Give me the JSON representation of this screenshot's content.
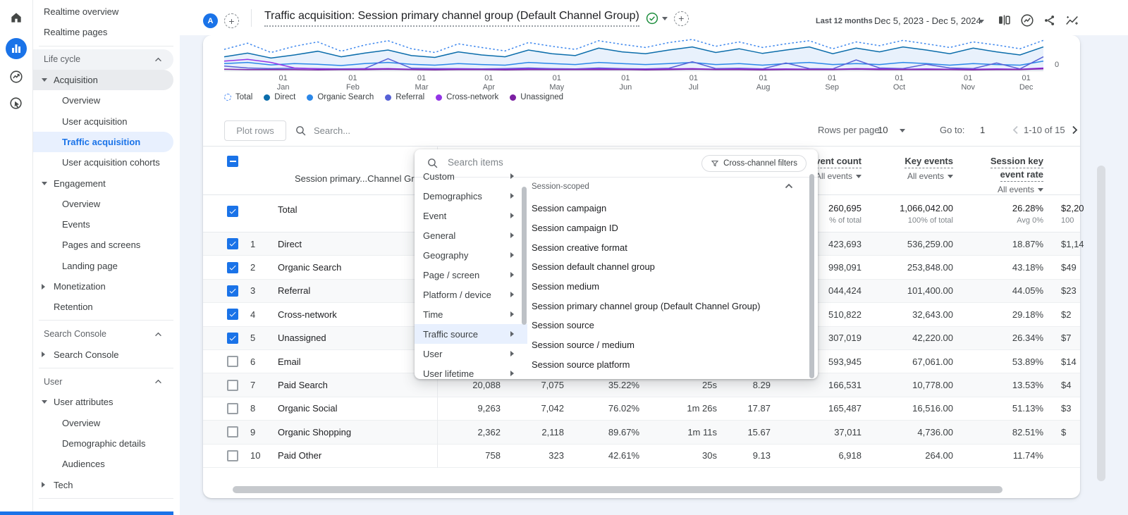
{
  "colors": {
    "accent": "#1a73e8",
    "selected_bg": "#e8f0fe",
    "badge_green": "#1e8e3e"
  },
  "rail": {
    "items": [
      {
        "icon": "home-icon",
        "active": false
      },
      {
        "icon": "reports-icon",
        "active": true
      },
      {
        "icon": "explore-icon",
        "active": false
      },
      {
        "icon": "advertising-icon",
        "active": false
      }
    ]
  },
  "sidebar": {
    "items": [
      {
        "type": "link",
        "label": "Realtime overview",
        "indent": 0
      },
      {
        "type": "link",
        "label": "Realtime pages",
        "indent": 0
      },
      {
        "type": "divider"
      },
      {
        "type": "header",
        "label": "Life cycle",
        "shade": "light"
      },
      {
        "type": "expand",
        "label": "Acquisition",
        "state": "expanded",
        "shade": "gray"
      },
      {
        "type": "link",
        "label": "Overview",
        "indent": 2
      },
      {
        "type": "link",
        "label": "User acquisition",
        "indent": 2
      },
      {
        "type": "link",
        "label": "Traffic acquisition",
        "indent": 2,
        "selected": true
      },
      {
        "type": "link",
        "label": "User acquisition cohorts",
        "indent": 2
      },
      {
        "type": "expand",
        "label": "Engagement",
        "state": "expanded"
      },
      {
        "type": "link",
        "label": "Overview",
        "indent": 2
      },
      {
        "type": "link",
        "label": "Events",
        "indent": 2
      },
      {
        "type": "link",
        "label": "Pages and screens",
        "indent": 2
      },
      {
        "type": "link",
        "label": "Landing page",
        "indent": 2
      },
      {
        "type": "expand",
        "label": "Monetization",
        "state": "collapsed"
      },
      {
        "type": "link",
        "label": "Retention",
        "indent": 1
      },
      {
        "type": "divider"
      },
      {
        "type": "header",
        "label": "Search Console"
      },
      {
        "type": "expand",
        "label": "Search Console",
        "state": "collapsed"
      },
      {
        "type": "divider"
      },
      {
        "type": "header",
        "label": "User"
      },
      {
        "type": "expand",
        "label": "User attributes",
        "state": "expanded"
      },
      {
        "type": "link",
        "label": "Overview",
        "indent": 2
      },
      {
        "type": "link",
        "label": "Demographic details",
        "indent": 2
      },
      {
        "type": "link",
        "label": "Audiences",
        "indent": 2
      },
      {
        "type": "expand",
        "label": "Tech",
        "state": "collapsed"
      },
      {
        "type": "divider"
      }
    ]
  },
  "topbar": {
    "avatar_letter": "A",
    "plus": "+",
    "title": "Traffic acquisition: Session primary channel group (Default Channel Group)",
    "date_label": "Last 12 months",
    "date_range": "Dec 5, 2023 - Dec 5, 2024"
  },
  "chart_data": {
    "type": "line",
    "title": "",
    "xlabel": "",
    "ylabel": "",
    "y_right_label": "0",
    "grid": false,
    "legend_position": "bottom-left",
    "x_ticks": [
      {
        "day": "01",
        "month": "Jan",
        "pct": 7.2
      },
      {
        "day": "01",
        "month": "Feb",
        "pct": 15.7
      },
      {
        "day": "01",
        "month": "Mar",
        "pct": 24.1
      },
      {
        "day": "01",
        "month": "Apr",
        "pct": 32.3
      },
      {
        "day": "01",
        "month": "May",
        "pct": 40.6
      },
      {
        "day": "01",
        "month": "Jun",
        "pct": 49.0
      },
      {
        "day": "01",
        "month": "Jul",
        "pct": 57.3
      },
      {
        "day": "01",
        "month": "Aug",
        "pct": 65.8
      },
      {
        "day": "01",
        "month": "Sep",
        "pct": 74.2
      },
      {
        "day": "01",
        "month": "Oct",
        "pct": 82.4
      },
      {
        "day": "01",
        "month": "Nov",
        "pct": 90.8
      },
      {
        "day": "01",
        "month": "Dec",
        "pct": 97.9
      }
    ],
    "y_range_note": "values estimated, axis unlabeled except 0",
    "series": [
      {
        "name": "Total",
        "color": "#3d87ee",
        "dashed": true,
        "fill": false,
        "values": [
          68,
          88,
          58,
          78,
          92,
          62,
          82,
          96,
          70,
          58,
          86,
          74,
          63,
          90,
          78,
          68,
          96,
          84,
          74,
          90,
          100,
          78,
          92,
          74,
          86,
          96,
          70,
          92,
          80,
          97,
          86,
          74,
          92,
          82,
          70,
          97
        ]
      },
      {
        "name": "Direct",
        "color": "#0b6dab",
        "dashed": false,
        "fill": true,
        "values": [
          44,
          56,
          40,
          50,
          62,
          44,
          56,
          66,
          48,
          42,
          60,
          50,
          44,
          66,
          54,
          48,
          72,
          60,
          54,
          66,
          76,
          58,
          70,
          55,
          66,
          76,
          54,
          72,
          60,
          76,
          66,
          54,
          72,
          60,
          50,
          76
        ]
      },
      {
        "name": "Organic Search",
        "color": "#2b87e8",
        "dashed": false,
        "fill": false,
        "values": [
          22,
          26,
          18,
          22,
          20,
          16,
          22,
          26,
          20,
          17,
          22,
          19,
          17,
          26,
          22,
          19,
          26,
          22,
          19,
          22,
          26,
          19,
          22,
          17,
          22,
          26,
          19,
          22,
          19,
          26,
          22,
          17,
          22,
          19,
          17,
          30
        ]
      },
      {
        "name": "Referral",
        "color": "#5661d6",
        "dashed": false,
        "fill": false,
        "values": [
          14,
          8,
          6,
          7,
          6,
          5,
          6,
          38,
          7,
          6,
          6,
          5,
          6,
          8,
          6,
          5,
          8,
          6,
          5,
          7,
          28,
          6,
          7,
          5,
          24,
          6,
          5,
          34,
          8,
          6,
          20,
          8,
          6,
          24,
          5,
          44
        ]
      },
      {
        "name": "Cross-network",
        "color": "#9334e6",
        "dashed": false,
        "fill": false,
        "values": [
          30,
          36,
          26,
          8,
          5,
          4,
          5,
          6,
          4,
          4,
          5,
          4,
          4,
          5,
          4,
          4,
          5,
          4,
          4,
          5,
          6,
          4,
          5,
          4,
          5,
          4,
          4,
          6,
          5,
          4,
          5,
          4,
          4,
          5,
          4,
          8
        ]
      },
      {
        "name": "Unassigned",
        "color": "#7b1fa2",
        "dashed": false,
        "fill": false,
        "values": [
          4,
          3,
          3,
          3,
          2,
          3,
          3,
          4,
          3,
          2,
          3,
          3,
          2,
          3,
          3,
          3,
          3,
          3,
          2,
          3,
          4,
          3,
          3,
          2,
          3,
          3,
          3,
          4,
          3,
          3,
          3,
          3,
          2,
          3,
          3,
          5
        ]
      }
    ]
  },
  "toolbar": {
    "plot_rows_label": "Plot rows",
    "search_placeholder": "Search...",
    "rows_per_page_label": "Rows per page:",
    "rows_per_page_value": "10",
    "goto_label": "Go to:",
    "goto_value": "1",
    "range_label": "1-10 of 15"
  },
  "table": {
    "dimension_header": "Session primary...Channel Group)",
    "metric_headers": {
      "event_count": {
        "line1": "Event count",
        "sub": "All events"
      },
      "key_events": {
        "line1": "Key events",
        "sub": "All events"
      },
      "session_rate": {
        "line1": "Session key",
        "line2": "event rate",
        "sub": "All events"
      }
    },
    "total_row": {
      "label": "Total",
      "checkbox": "checked",
      "event_count": "260,695",
      "event_count_sub": "% of total",
      "key_events": "1,066,042.00",
      "key_events_sub": "100% of total",
      "rate": "26.28%",
      "rate_sub": "Avg 0%",
      "revenue": "$2,20",
      "revenue_sub": "100"
    },
    "rows": [
      {
        "rank": "1",
        "channel": "Direct",
        "checked": true,
        "sessions": "",
        "engaged": "",
        "eng_rate": "",
        "avg_time": "",
        "eps": "",
        "event_count": "423,693",
        "key_events": "536,259.00",
        "rate": "18.87%",
        "revenue": "$1,14"
      },
      {
        "rank": "2",
        "channel": "Organic Search",
        "checked": true,
        "sessions": "",
        "engaged": "",
        "eng_rate": "",
        "avg_time": "",
        "eps": "",
        "event_count": "998,091",
        "key_events": "253,848.00",
        "rate": "43.18%",
        "revenue": "$49"
      },
      {
        "rank": "3",
        "channel": "Referral",
        "checked": true,
        "sessions": "",
        "engaged": "",
        "eng_rate": "",
        "avg_time": "",
        "eps": "",
        "event_count": "044,424",
        "key_events": "101,400.00",
        "rate": "44.05%",
        "revenue": "$23"
      },
      {
        "rank": "4",
        "channel": "Cross-network",
        "checked": true,
        "sessions": "",
        "engaged": "",
        "eng_rate": "",
        "avg_time": "",
        "eps": "",
        "event_count": "510,822",
        "key_events": "32,643.00",
        "rate": "29.18%",
        "revenue": "$2"
      },
      {
        "rank": "5",
        "channel": "Unassigned",
        "checked": true,
        "sessions": "",
        "engaged": "",
        "eng_rate": "",
        "avg_time": "",
        "eps": "",
        "event_count": "307,019",
        "key_events": "42,220.00",
        "rate": "26.34%",
        "revenue": "$7"
      },
      {
        "rank": "6",
        "channel": "Email",
        "checked": false,
        "sessions": "",
        "engaged": "",
        "eng_rate": "",
        "avg_time": "",
        "eps": "",
        "event_count": "593,945",
        "key_events": "67,061.00",
        "rate": "53.89%",
        "revenue": "$14"
      },
      {
        "rank": "7",
        "channel": "Paid Search",
        "checked": false,
        "sessions": "20,088",
        "engaged": "7,075",
        "eng_rate": "35.22%",
        "avg_time": "25s",
        "eps": "8.29",
        "event_count": "166,531",
        "key_events": "10,778.00",
        "rate": "13.53%",
        "revenue": "$4"
      },
      {
        "rank": "8",
        "channel": "Organic Social",
        "checked": false,
        "sessions": "9,263",
        "engaged": "7,042",
        "eng_rate": "76.02%",
        "avg_time": "1m 26s",
        "eps": "17.87",
        "event_count": "165,487",
        "key_events": "16,516.00",
        "rate": "51.13%",
        "revenue": "$3"
      },
      {
        "rank": "9",
        "channel": "Organic Shopping",
        "checked": false,
        "sessions": "2,362",
        "engaged": "2,118",
        "eng_rate": "89.67%",
        "avg_time": "1m 11s",
        "eps": "15.67",
        "event_count": "37,011",
        "key_events": "4,736.00",
        "rate": "82.51%",
        "revenue": "$"
      },
      {
        "rank": "10",
        "channel": "Paid Other",
        "checked": false,
        "sessions": "758",
        "engaged": "323",
        "eng_rate": "42.61%",
        "avg_time": "30s",
        "eps": "9.13",
        "event_count": "6,918",
        "key_events": "264.00",
        "rate": "11.74%",
        "revenue": ""
      }
    ]
  },
  "dropdown": {
    "search_placeholder": "Search items",
    "filter_chip": "Cross-channel filters",
    "categories": [
      {
        "label": "Custom",
        "partial": true
      },
      {
        "label": "Demographics"
      },
      {
        "label": "Event"
      },
      {
        "label": "General"
      },
      {
        "label": "Geography"
      },
      {
        "label": "Page / screen"
      },
      {
        "label": "Platform / device"
      },
      {
        "label": "Time"
      },
      {
        "label": "Traffic source",
        "selected": true
      },
      {
        "label": "User"
      },
      {
        "label": "User lifetime"
      }
    ],
    "section_title": "Session-scoped",
    "items": [
      "Session campaign",
      "Session campaign ID",
      "Session creative format",
      "Session default channel group",
      "Session medium",
      "Session primary channel group (Default Channel Group)",
      "Session source",
      "Session source / medium",
      "Session source platform"
    ]
  }
}
